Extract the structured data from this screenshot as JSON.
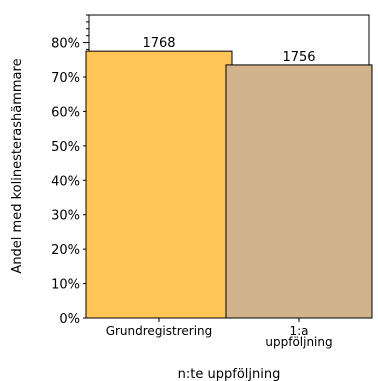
{
  "chart_data": {
    "type": "bar",
    "categories": [
      {
        "lines": [
          "Grundregistrering"
        ]
      },
      {
        "lines": [
          "1:a",
          "uppföljning"
        ]
      }
    ],
    "values": [
      77.5,
      73.5
    ],
    "data_labels": [
      "1768",
      "1756"
    ],
    "bar_colors": [
      "#FFC657",
      "#D2B48C"
    ],
    "ylabel": "Andel med kolinesterashämmare",
    "xlabel": "n:te uppföljning",
    "ylim": [
      0,
      88
    ],
    "y_ticks": [
      0,
      10,
      20,
      30,
      40,
      50,
      60,
      70,
      80
    ],
    "y_tick_labels": [
      "0%",
      "10%",
      "20%",
      "30%",
      "40%",
      "50%",
      "60%",
      "70%",
      "80%"
    ],
    "grid": false
  }
}
